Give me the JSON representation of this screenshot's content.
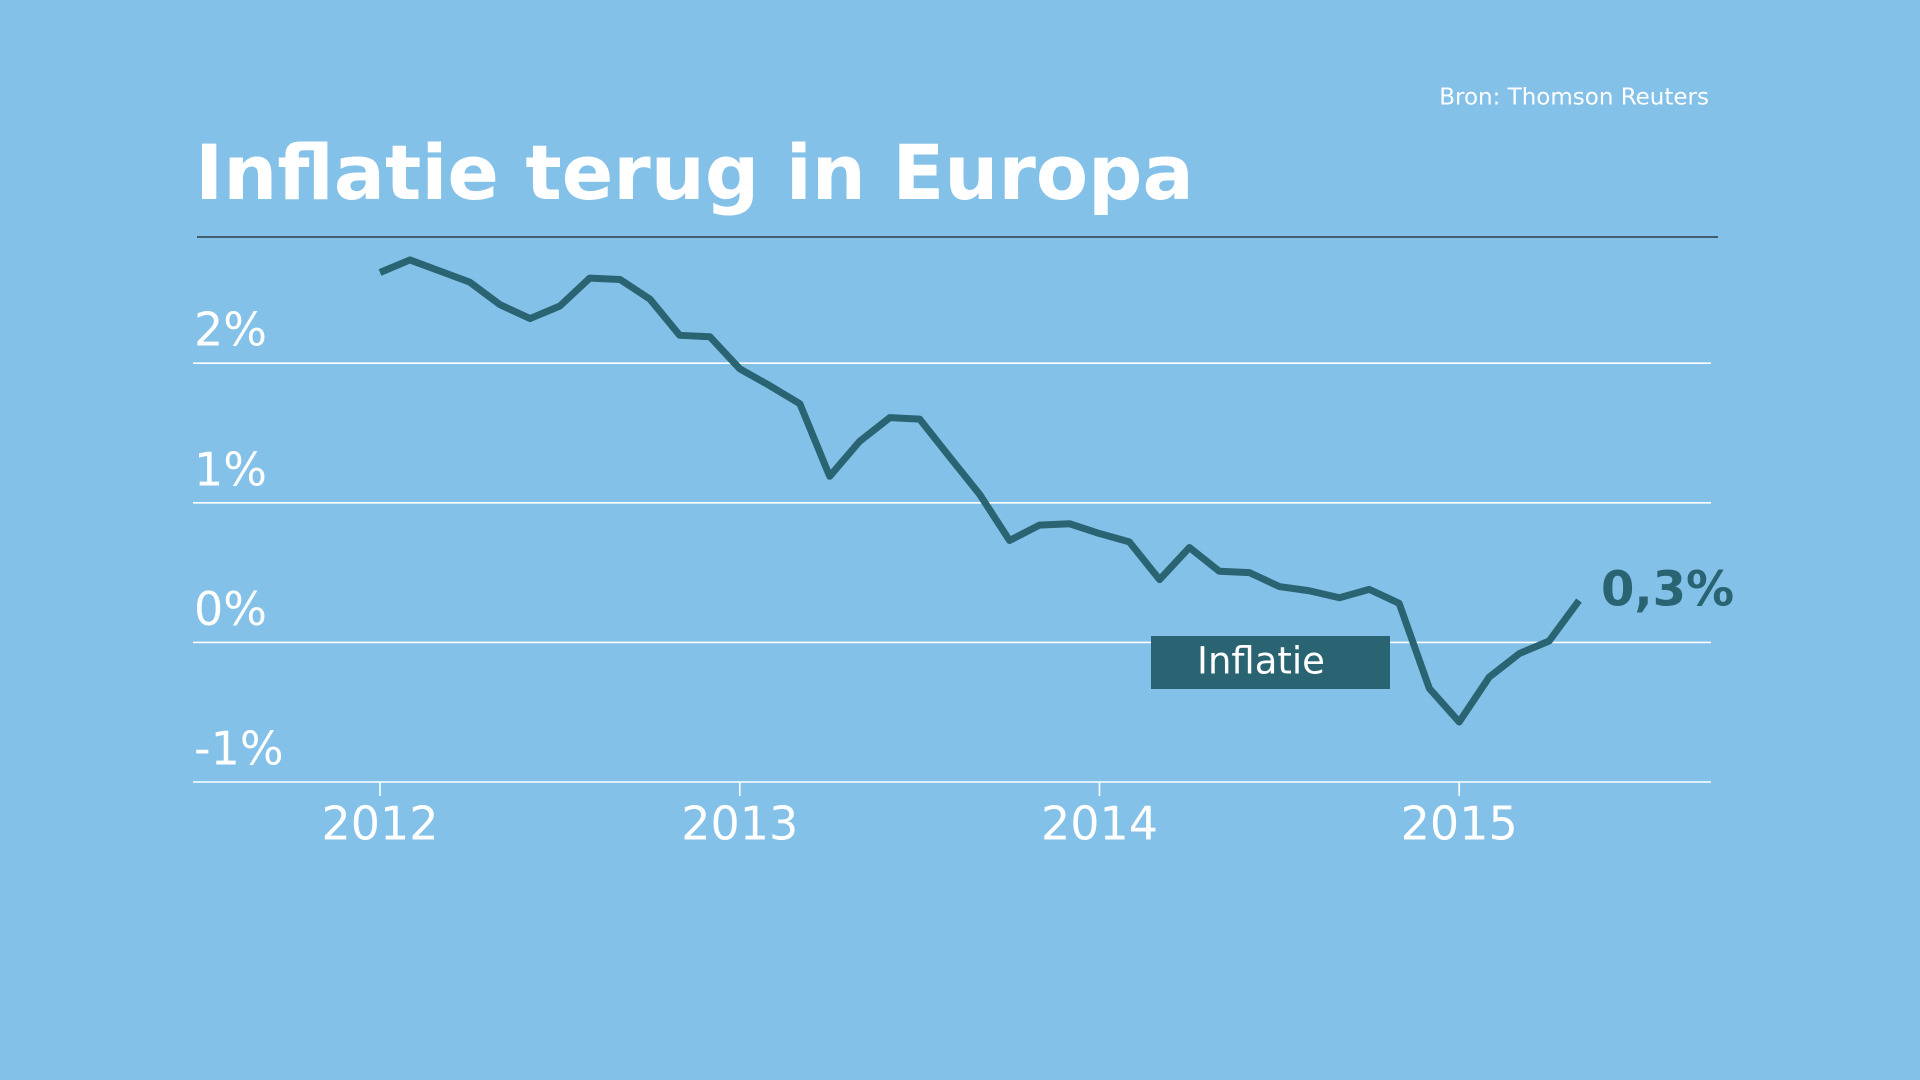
{
  "chart_data": {
    "type": "line",
    "title": "Inflatie terug in Europa",
    "source": "Bron: Thomson Reuters",
    "annotation": "0,3%",
    "x": [
      2012.0,
      2012.083,
      2012.167,
      2012.25,
      2012.333,
      2012.417,
      2012.5,
      2012.583,
      2012.667,
      2012.75,
      2012.833,
      2012.917,
      2013.0,
      2013.083,
      2013.167,
      2013.25,
      2013.333,
      2013.417,
      2013.5,
      2013.583,
      2013.667,
      2013.75,
      2013.833,
      2013.917,
      2014.0,
      2014.083,
      2014.167,
      2014.25,
      2014.333,
      2014.417,
      2014.5,
      2014.583,
      2014.667,
      2014.75,
      2014.833,
      2014.917,
      2015.0,
      2015.083,
      2015.167,
      2015.25,
      2015.333
    ],
    "series": [
      {
        "name": "Inflatie",
        "color": "#2a6472",
        "values": [
          2.65,
          2.74,
          2.66,
          2.58,
          2.42,
          2.32,
          2.41,
          2.61,
          2.6,
          2.46,
          2.2,
          2.19,
          1.96,
          1.84,
          1.71,
          1.19,
          1.44,
          1.61,
          1.6,
          1.33,
          1.06,
          0.73,
          0.84,
          0.85,
          0.78,
          0.72,
          0.45,
          0.68,
          0.51,
          0.5,
          0.4,
          0.37,
          0.32,
          0.38,
          0.28,
          -0.33,
          -0.57,
          -0.25,
          -0.08,
          0.01,
          0.3
        ]
      }
    ],
    "xlim": [
      2011.48,
      2015.7
    ],
    "xticks": [
      2012,
      2013,
      2014,
      2015
    ],
    "ylim": [
      -1,
      2.9
    ],
    "yticks": [
      {
        "value": -1,
        "label": "-1%"
      },
      {
        "value": 0,
        "label": "0%"
      },
      {
        "value": 1,
        "label": "1%"
      },
      {
        "value": 2,
        "label": "2%"
      }
    ],
    "grid": true
  }
}
